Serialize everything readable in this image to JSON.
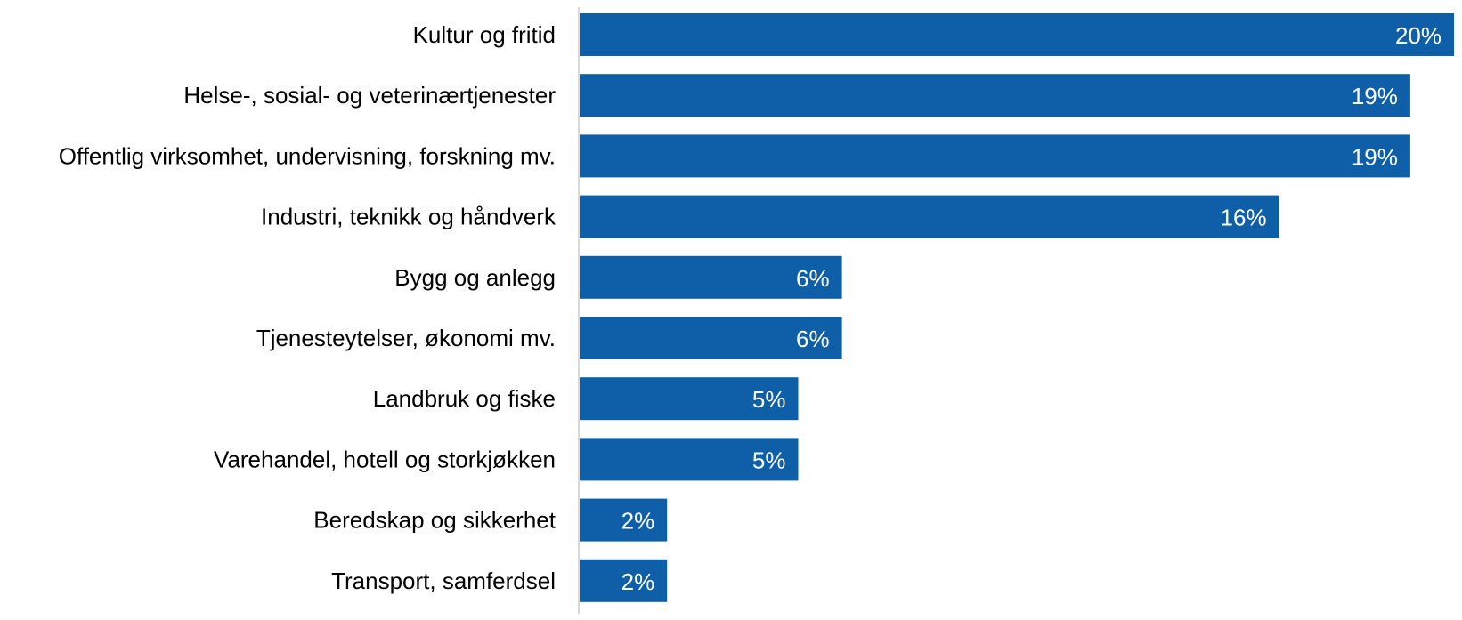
{
  "chart_data": {
    "type": "bar",
    "orientation": "horizontal",
    "categories": [
      "Kultur og fritid",
      "Helse-, sosial- og veterinærtjenester",
      "Offentlig virksomhet, undervisning, forskning mv.",
      "Industri, teknikk og håndverk",
      "Bygg og anlegg",
      "Tjenesteytelser, økonomi mv.",
      "Landbruk og fiske",
      "Varehandel, hotell og storkjøkken",
      "Beredskap og sikkerhet",
      "Transport, samferdsel"
    ],
    "values": [
      20,
      19,
      19,
      16,
      6,
      6,
      5,
      5,
      2,
      2
    ],
    "labels": [
      "20%",
      "19%",
      "19%",
      "16%",
      "6%",
      "6%",
      "5%",
      "5%",
      "2%",
      "2%"
    ],
    "title": "",
    "xlabel": "",
    "ylabel": "",
    "xlim": [
      0,
      20
    ],
    "grid": false,
    "legend": "none",
    "bar_color": "#0e5ea8",
    "axis_color": "#d9d9d9"
  }
}
